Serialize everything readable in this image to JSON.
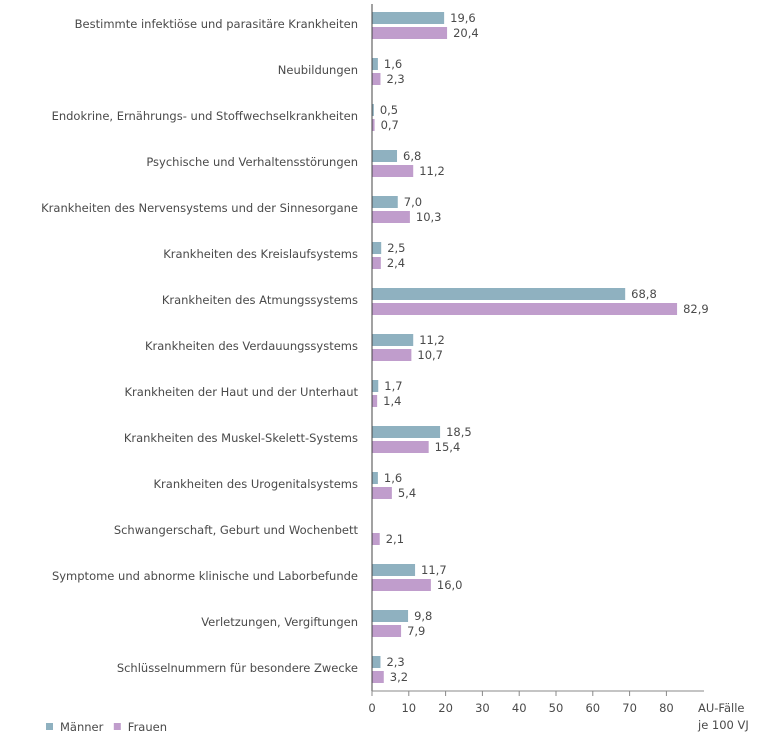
{
  "chart_data": {
    "type": "bar",
    "orientation": "horizontal",
    "categories": [
      "Bestimmte infektiöse und parasitäre Krankheiten",
      "Neubildungen",
      "Endokrine, Ernährungs- und Stoffwechselkrankheiten",
      "Psychische und Verhaltensstörungen",
      "Krankheiten des Nervensystems und der Sinnesorgane",
      "Krankheiten des Kreislaufsystems",
      "Krankheiten des Atmungssystems",
      "Krankheiten des Verdauungssystems",
      "Krankheiten der Haut und der Unterhaut",
      "Krankheiten des Muskel-Skelett-Systems",
      "Krankheiten des Urogenitalsystems",
      "Schwangerschaft, Geburt und Wochenbett",
      "Symptome und abnorme klinische und Laborbefunde",
      "Verletzungen, Vergiftungen",
      "Schlüsselnummern für besondere Zwecke"
    ],
    "series": [
      {
        "name": "Männer",
        "color": "#8fb1c0",
        "values": [
          19.6,
          1.6,
          0.5,
          6.8,
          7.0,
          2.5,
          68.8,
          11.2,
          1.7,
          18.5,
          1.6,
          null,
          11.7,
          9.8,
          2.3
        ],
        "labels": [
          "19,6",
          "1,6",
          "0,5",
          "6,8",
          "7,0",
          "2,5",
          "68,8",
          "11,2",
          "1,7",
          "18,5",
          "1,6",
          "",
          "11,7",
          "9,8",
          "2,3"
        ]
      },
      {
        "name": "Frauen",
        "color": "#c09dcc",
        "values": [
          20.4,
          2.3,
          0.7,
          11.2,
          10.3,
          2.4,
          82.9,
          10.7,
          1.4,
          15.4,
          5.4,
          2.1,
          16.0,
          7.9,
          3.2
        ],
        "labels": [
          "20,4",
          "2,3",
          "0,7",
          "11,2",
          "10,3",
          "2,4",
          "82,9",
          "10,7",
          "1,4",
          "15,4",
          "5,4",
          "2,1",
          "16,0",
          "7,9",
          "3,2"
        ]
      }
    ],
    "xticks": [
      0,
      10,
      20,
      30,
      40,
      50,
      60,
      70,
      80
    ],
    "xlim": [
      0,
      90
    ],
    "xlabel": [
      "AU-Fälle",
      "je 100 VJ"
    ],
    "legend": "bottom-left",
    "grid": false
  }
}
